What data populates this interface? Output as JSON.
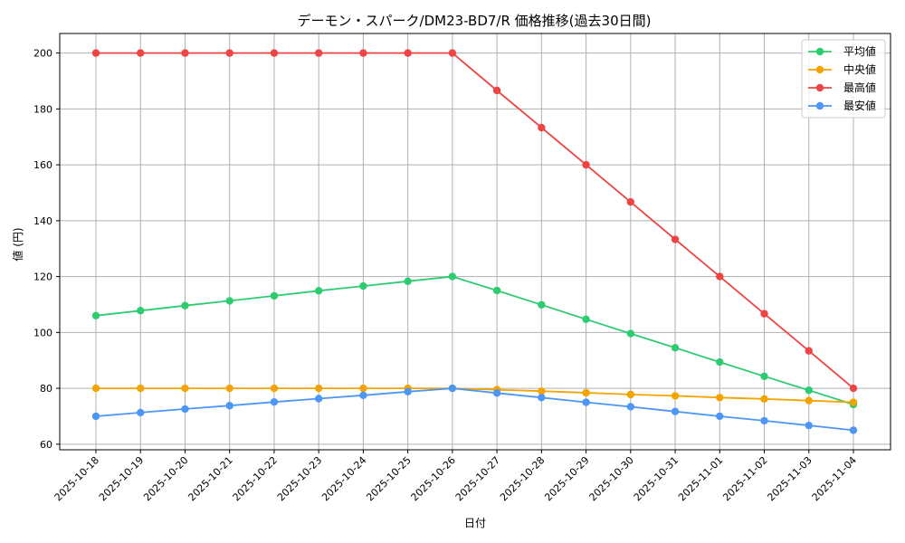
{
  "chart_data": {
    "type": "line",
    "title": "デーモン・スパーク/DM23-BD7/R 価格推移(過去30日間)",
    "xlabel": "日付",
    "ylabel": "値 (円)",
    "ylim": [
      58,
      207
    ],
    "yticks": [
      60,
      80,
      100,
      120,
      140,
      160,
      180,
      200
    ],
    "grid": true,
    "legend_position": "top-right",
    "categories": [
      "2025-10-18",
      "2025-10-19",
      "2025-10-20",
      "2025-10-21",
      "2025-10-22",
      "2025-10-23",
      "2025-10-24",
      "2025-10-25",
      "2025-10-26",
      "2025-10-27",
      "2025-10-28",
      "2025-10-29",
      "2025-10-30",
      "2025-10-31",
      "2025-11-01",
      "2025-11-02",
      "2025-11-03",
      "2025-11-04"
    ],
    "series": [
      {
        "name": "平均値",
        "color": "#2ecc71",
        "values": [
          106.0,
          107.8,
          109.6,
          111.3,
          113.1,
          114.9,
          116.6,
          118.3,
          120.0,
          115.0,
          109.9,
          104.7,
          99.6,
          94.5,
          89.4,
          84.3,
          79.3,
          74.2
        ]
      },
      {
        "name": "中央値",
        "color": "#f5a300",
        "values": [
          80,
          80,
          80,
          80,
          80,
          80,
          80,
          80,
          80,
          79.5,
          79.0,
          78.4,
          77.8,
          77.3,
          76.7,
          76.2,
          75.6,
          75.0
        ]
      },
      {
        "name": "最高値",
        "color": "#ef4444",
        "values": [
          200,
          200,
          200,
          200,
          200,
          200,
          200,
          200,
          200,
          186.6,
          173.3,
          160.0,
          146.7,
          133.3,
          120.0,
          106.7,
          93.4,
          80.0
        ]
      },
      {
        "name": "最安値",
        "color": "#4c96f5",
        "values": [
          70.0,
          71.3,
          72.6,
          73.8,
          75.1,
          76.3,
          77.5,
          78.8,
          80.0,
          78.3,
          76.7,
          75.0,
          73.4,
          71.7,
          70.0,
          68.4,
          66.7,
          65.0
        ]
      }
    ]
  }
}
